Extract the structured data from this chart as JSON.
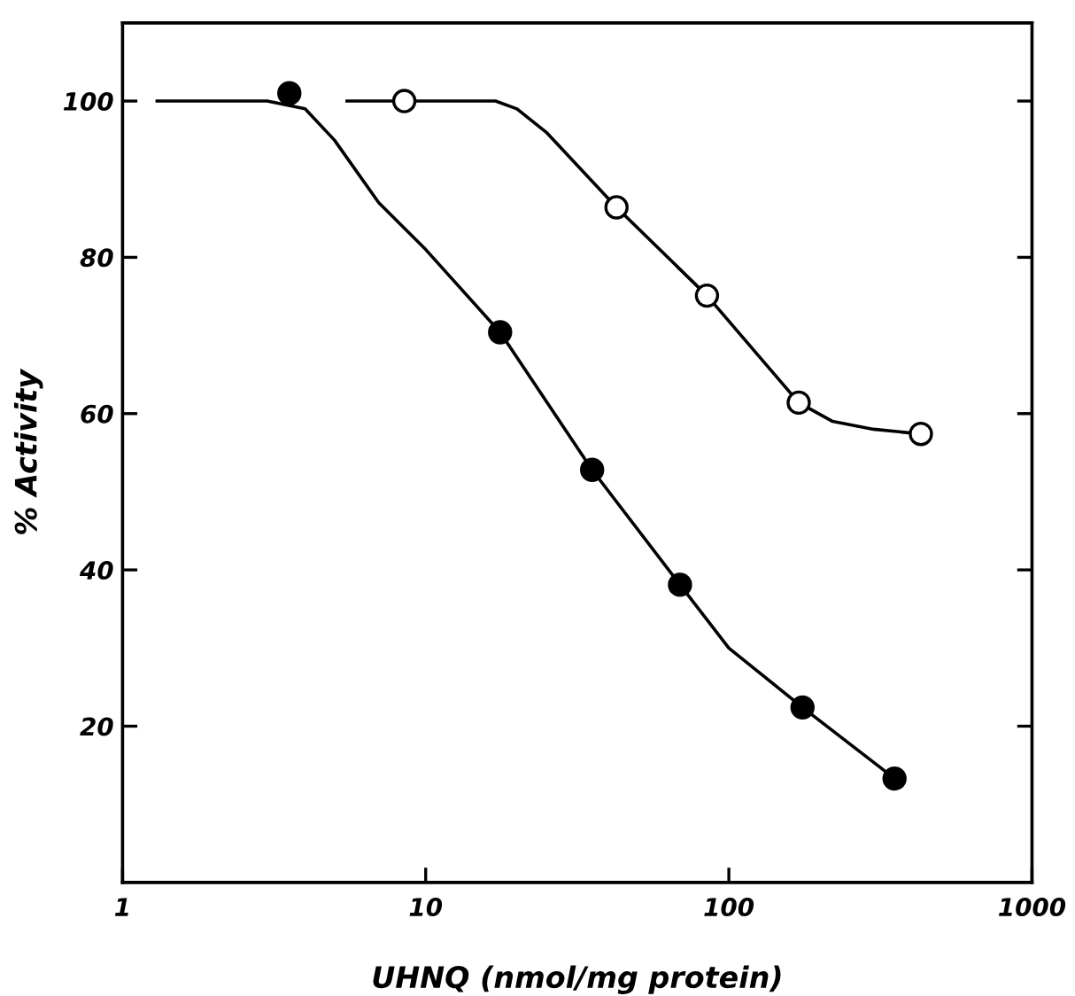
{
  "chart_data": {
    "type": "scatter",
    "xlabel": "UHNQ (nmol/mg protein)",
    "ylabel": "% Activity",
    "log": "x",
    "xlim": [
      1,
      1000
    ],
    "xticks": [
      1,
      10,
      100,
      1000
    ],
    "ylim": [
      0,
      110
    ],
    "yticks": [
      20,
      40,
      60,
      80,
      100
    ],
    "grid": false,
    "legend": false,
    "series": [
      {
        "type": "line",
        "color": "#000000",
        "marker": "none",
        "x": [
          1.3,
          3,
          4,
          5,
          7,
          10,
          17.6,
          35.4,
          69,
          100,
          175,
          352
        ],
        "values": [
          100,
          100,
          99,
          95,
          87,
          81,
          70.4,
          52.8,
          38.1,
          30,
          22.4,
          13.3
        ]
      },
      {
        "type": "line",
        "color": "#000000",
        "marker": "none",
        "x": [
          5.5,
          10,
          17,
          20,
          25,
          42.6,
          84.7,
          170,
          220,
          300,
          430
        ],
        "values": [
          100,
          100,
          100,
          99,
          96,
          86.4,
          75.1,
          61.4,
          59,
          58,
          57.4
        ]
      },
      {
        "color": "#000000",
        "marker": "circle",
        "x": [
          3.55,
          17.6,
          35.4,
          69,
          175,
          352
        ],
        "values": [
          101,
          70.4,
          52.8,
          38.1,
          22.4,
          13.3
        ]
      },
      {
        "color": "#ffffff",
        "marker": "circle",
        "x": [
          8.5,
          42.6,
          84.7,
          170,
          430
        ],
        "values": [
          100,
          86.4,
          75.1,
          61.4,
          57.4
        ]
      }
    ]
  }
}
